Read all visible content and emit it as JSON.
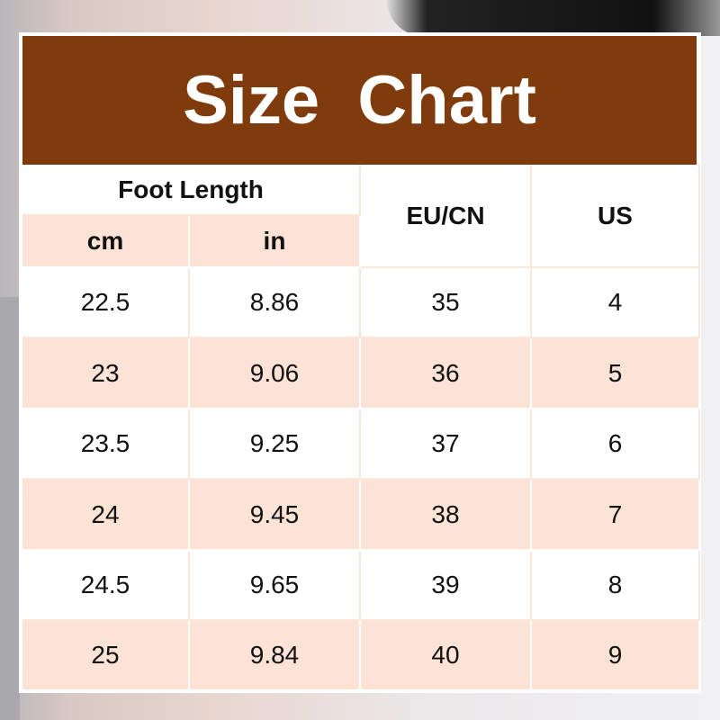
{
  "title": "Size  Chart",
  "headers": {
    "foot_length": "Foot Length",
    "cm": "cm",
    "in": "in",
    "eu_cn": "EU/CN",
    "us": "US"
  },
  "rows": [
    [
      "22.5",
      "8.86",
      "35",
      "4"
    ],
    [
      "23",
      "9.06",
      "36",
      "5"
    ],
    [
      "23.5",
      "9.25",
      "37",
      "6"
    ],
    [
      "24",
      "9.45",
      "38",
      "7"
    ],
    [
      "24.5",
      "9.65",
      "39",
      "8"
    ],
    [
      "25",
      "9.84",
      "40",
      "9"
    ]
  ],
  "colors": {
    "header_bg": "#7f3b0c",
    "stripe": "#fce3d6"
  }
}
